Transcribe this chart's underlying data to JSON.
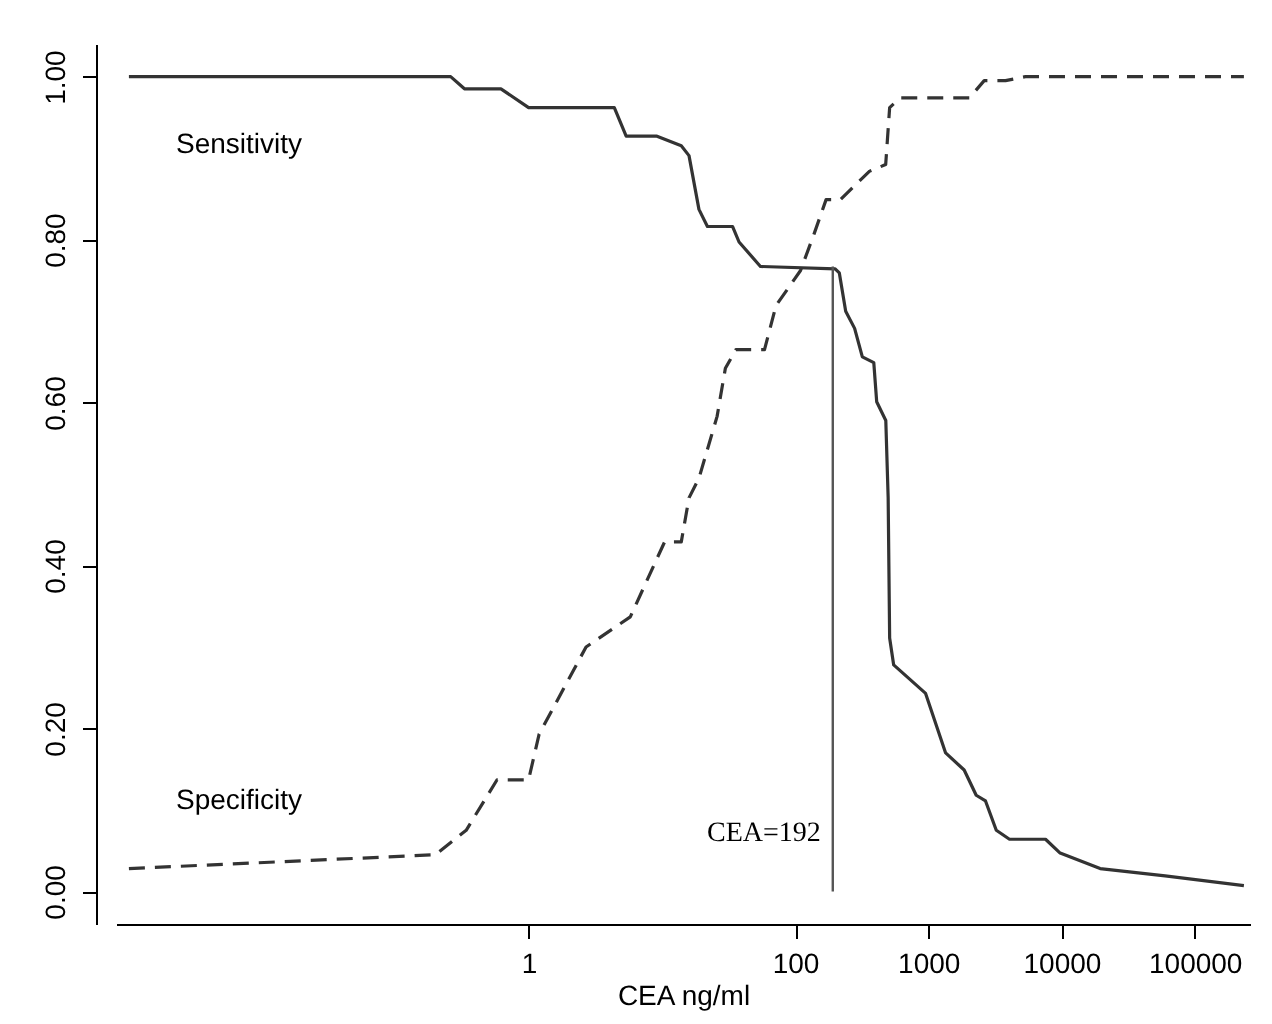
{
  "chart_data": {
    "type": "line",
    "xlabel": "CEA ng/ml",
    "log": "x",
    "xlim": [
      0.0008,
      260000
    ],
    "xticks": [
      1,
      100,
      1000,
      10000,
      100000
    ],
    "ylim": [
      -0.04,
      1.04
    ],
    "yticks": [
      {
        "value": 0,
        "label": "0.00"
      },
      {
        "value": 0.2,
        "label": "0.20"
      },
      {
        "value": 0.4,
        "label": "0.40"
      },
      {
        "value": 0.6,
        "label": "0.60"
      },
      {
        "value": 0.8,
        "label": "0.80"
      },
      {
        "value": 1,
        "label": "1.00"
      }
    ],
    "grid": false,
    "marker": "none",
    "series": [
      {
        "name": "Sensitivity",
        "color": "#333333",
        "line_style": "solid",
        "x": [
          0.001,
          0.26,
          0.33,
          0.62,
          1.0,
          4.4,
          5.4,
          9.1,
          14,
          16,
          19,
          22,
          34,
          38,
          55,
          200,
          215,
          240,
          280,
          320,
          390,
          410,
          480,
          500,
          513,
          550,
          955,
          1350,
          1860,
          2290,
          2690,
          3240,
          4070,
          7590,
          9770,
          19500,
          60000,
          234000
        ],
        "values": [
          1.0,
          1.0,
          0.985,
          0.985,
          0.962,
          0.962,
          0.927,
          0.927,
          0.915,
          0.903,
          0.837,
          0.816,
          0.816,
          0.797,
          0.767,
          0.764,
          0.759,
          0.712,
          0.691,
          0.656,
          0.649,
          0.601,
          0.578,
          0.483,
          0.311,
          0.278,
          0.243,
          0.17,
          0.149,
          0.118,
          0.111,
          0.075,
          0.064,
          0.064,
          0.047,
          0.028,
          0.019,
          0.007
        ]
      },
      {
        "name": "Specificity",
        "color": "#333333",
        "line_style": "dashed",
        "x": [
          0.001,
          0.2,
          0.34,
          0.58,
          1.0,
          1.2,
          2.7,
          5.8,
          10.5,
          14,
          16,
          19,
          26,
          30,
          36,
          59,
          72,
          110,
          139,
          171,
          219,
          288,
          363,
          479,
          513,
          617,
          2040,
          2630,
          3800,
          5370,
          234000
        ],
        "values": [
          0.028,
          0.045,
          0.075,
          0.137,
          0.137,
          0.193,
          0.3,
          0.337,
          0.429,
          0.429,
          0.483,
          0.507,
          0.583,
          0.642,
          0.665,
          0.665,
          0.719,
          0.762,
          0.807,
          0.849,
          0.849,
          0.868,
          0.884,
          0.892,
          0.962,
          0.974,
          0.974,
          0.995,
          0.995,
          1.0,
          1.0
        ]
      }
    ],
    "ref_lines": [
      {
        "axis": "x",
        "value": 192,
        "label": "CEA=192",
        "color": "#555555"
      }
    ]
  }
}
